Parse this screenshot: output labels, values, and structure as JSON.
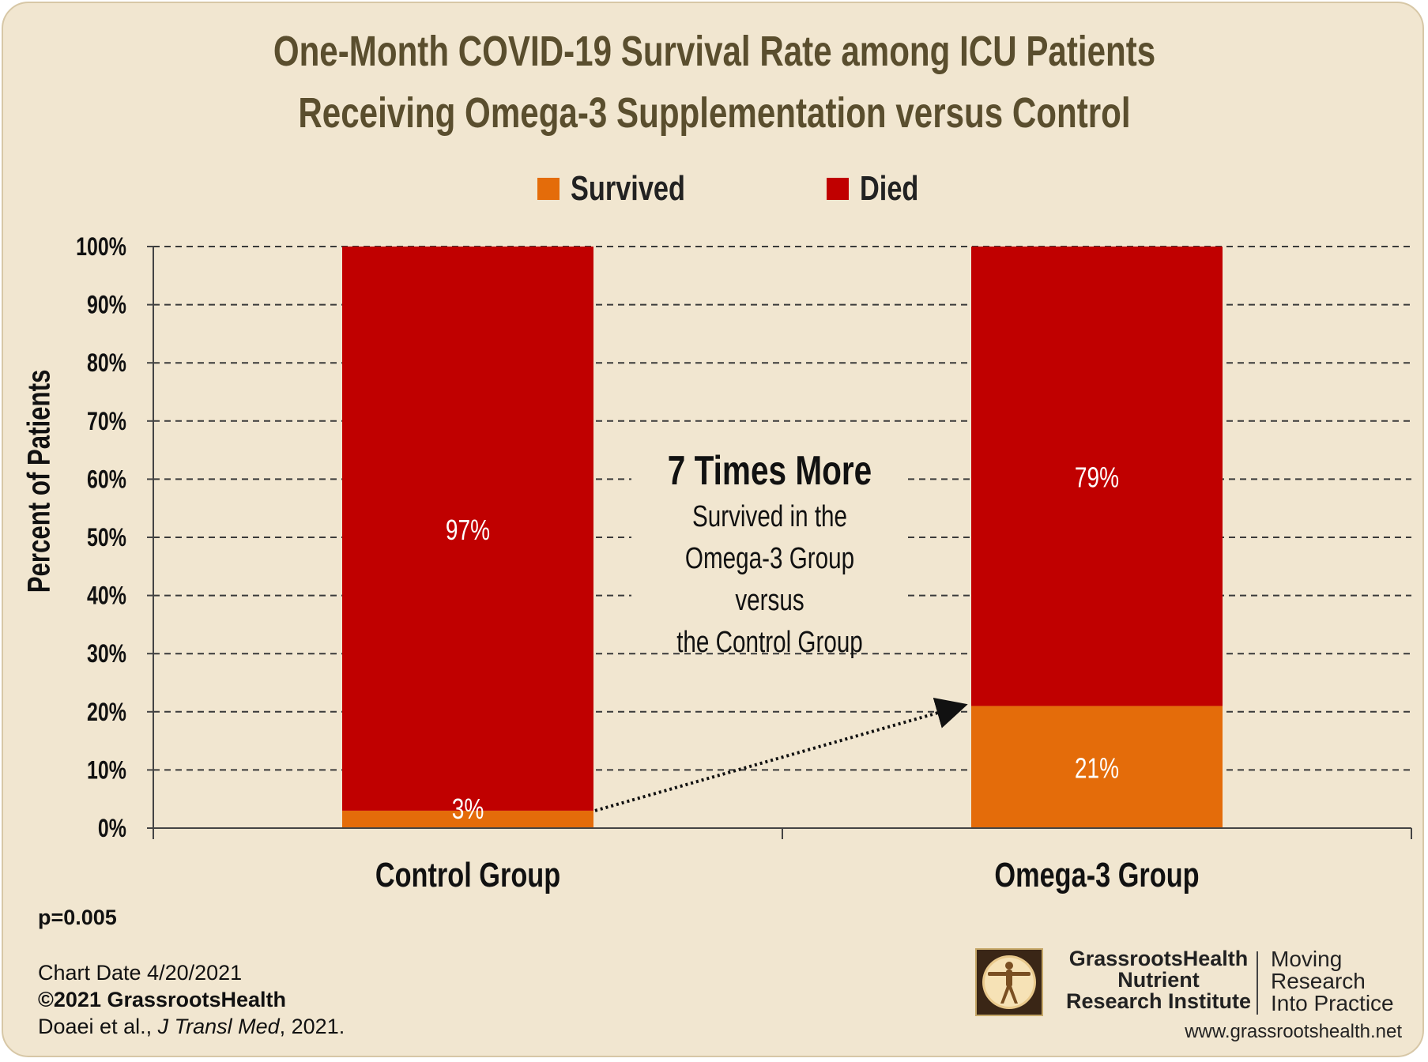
{
  "chart_data": {
    "type": "bar",
    "stacked": true,
    "title": "One-Month COVID-19 Survival Rate among ICU Patients Receiving Omega-3 Supplementation versus Control",
    "ylabel": "Percent of Patients",
    "xlabel": "",
    "categories": [
      "Control Group",
      "Omega-3 Group"
    ],
    "series": [
      {
        "name": "Survived",
        "color": "#e46c0a",
        "values": [
          3,
          21
        ],
        "labels": [
          "3%",
          "21%"
        ]
      },
      {
        "name": "Died",
        "color": "#c00000",
        "values": [
          97,
          79
        ],
        "labels": [
          "97%",
          "79%"
        ]
      }
    ],
    "ylim": [
      0,
      100
    ],
    "yticks": [
      0,
      10,
      20,
      30,
      40,
      50,
      60,
      70,
      80,
      90,
      100
    ],
    "ytick_labels": [
      "0%",
      "10%",
      "20%",
      "30%",
      "40%",
      "50%",
      "60%",
      "70%",
      "80%",
      "90%",
      "100%"
    ],
    "grid": true,
    "legend_position": "top",
    "annotation": {
      "headline": "7 Times More",
      "body": "Survived in the\nOmega-3 Group versus\nthe Control Group",
      "arrow_from": {
        "category": "Control Group",
        "value": 3
      },
      "arrow_to": {
        "category": "Omega-3 Group",
        "value": 21
      }
    }
  },
  "footer": {
    "pvalue": "p=0.005",
    "chart_date": "Chart Date 4/20/2021",
    "copyright": "©2021 GrassrootsHealth",
    "citation_authors": "Doaei et al., ",
    "citation_journal": "J Transl Med",
    "citation_year": ", 2021."
  },
  "branding": {
    "org_line1": "GrassrootsHealth",
    "org_line2": "Nutrient",
    "org_line3": "Research Institute",
    "motto_line1": "Moving",
    "motto_line2": "Research",
    "motto_line3": "Into Practice",
    "website": "www.grassrootshealth.net"
  }
}
